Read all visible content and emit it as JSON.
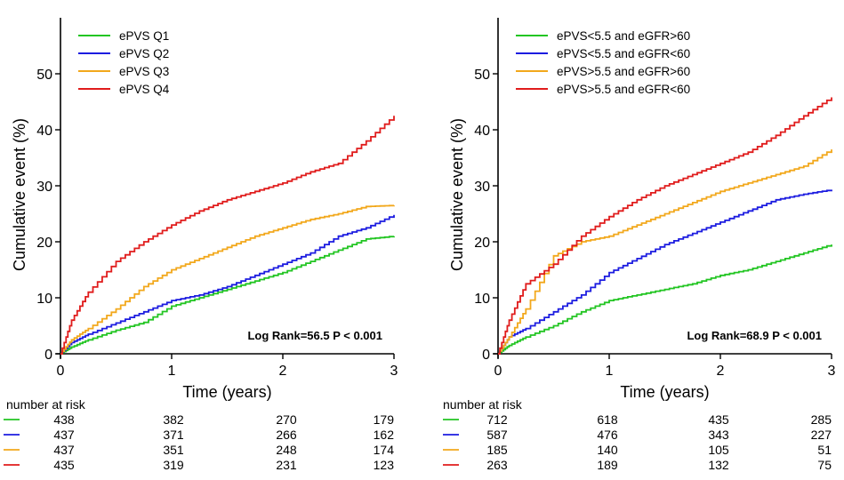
{
  "chart_data": [
    {
      "type": "line",
      "xlabel": "Time (years)",
      "ylabel": "Cumulative event (%)",
      "xlim": [
        0,
        3
      ],
      "ylim": [
        0,
        60
      ],
      "xticks": [
        0,
        1,
        2,
        3
      ],
      "yticks": [
        0,
        10,
        20,
        30,
        40,
        50
      ],
      "grid": false,
      "legend_position": "top-left",
      "annotation": "Log Rank=56.5   P < 0.001",
      "series": [
        {
          "name": "ePVS Q1",
          "color": "#22c522",
          "x": [
            0,
            0.1,
            0.25,
            0.5,
            0.75,
            1.0,
            1.25,
            1.5,
            1.75,
            2.0,
            2.25,
            2.5,
            2.75,
            3.0
          ],
          "y": [
            0,
            1.2,
            2.5,
            4.2,
            5.6,
            8.5,
            10.0,
            11.5,
            13.0,
            14.5,
            16.5,
            18.5,
            20.5,
            21.0
          ]
        },
        {
          "name": "ePVS Q2",
          "color": "#1c1ce0",
          "x": [
            0,
            0.1,
            0.25,
            0.5,
            0.75,
            1.0,
            1.25,
            1.5,
            1.75,
            2.0,
            2.25,
            2.5,
            2.75,
            3.0
          ],
          "y": [
            0,
            2.0,
            3.5,
            5.5,
            7.5,
            9.5,
            10.5,
            12.0,
            14.0,
            16.0,
            18.0,
            21.0,
            22.5,
            24.8
          ]
        },
        {
          "name": "ePVS Q3",
          "color": "#f2a81c",
          "x": [
            0,
            0.1,
            0.25,
            0.5,
            0.75,
            1.0,
            1.25,
            1.5,
            1.75,
            2.0,
            2.25,
            2.5,
            2.75,
            3.0
          ],
          "y": [
            0,
            2.5,
            4.5,
            8.0,
            12.0,
            15.0,
            17.0,
            19.0,
            21.0,
            22.5,
            24.0,
            25.0,
            26.3,
            26.5
          ]
        },
        {
          "name": "ePVS Q4",
          "color": "#e01c1c",
          "x": [
            0,
            0.1,
            0.25,
            0.5,
            0.75,
            1.0,
            1.25,
            1.5,
            1.75,
            2.0,
            2.25,
            2.5,
            2.75,
            3.0
          ],
          "y": [
            0,
            6.0,
            11.0,
            16.5,
            20.0,
            23.0,
            25.5,
            27.5,
            29.0,
            30.5,
            32.5,
            34.0,
            38.0,
            42.5
          ]
        }
      ],
      "risk_table": {
        "label": "number at risk",
        "rows": [
          {
            "color": "#22c522",
            "values": [
              "438",
              "382",
              "270",
              "179"
            ]
          },
          {
            "color": "#1c1ce0",
            "values": [
              "437",
              "371",
              "266",
              "162"
            ]
          },
          {
            "color": "#f2a81c",
            "values": [
              "437",
              "351",
              "248",
              "174"
            ]
          },
          {
            "color": "#e01c1c",
            "values": [
              "435",
              "319",
              "231",
              "123"
            ]
          }
        ]
      }
    },
    {
      "type": "line",
      "xlabel": "Time (years)",
      "ylabel": "Cumulative event (%)",
      "xlim": [
        0,
        3
      ],
      "ylim": [
        0,
        60
      ],
      "xticks": [
        0,
        1,
        2,
        3
      ],
      "yticks": [
        0,
        10,
        20,
        30,
        40,
        50
      ],
      "grid": false,
      "legend_position": "top-left",
      "annotation": "Log Rank=68.9   P < 0.001",
      "series": [
        {
          "name": "ePVS<5.5 and eGFR>60",
          "color": "#22c522",
          "x": [
            0,
            0.1,
            0.25,
            0.5,
            0.75,
            1.0,
            1.25,
            1.5,
            1.75,
            2.0,
            2.25,
            2.5,
            2.75,
            3.0
          ],
          "y": [
            0,
            1.5,
            3.0,
            5.0,
            7.5,
            9.5,
            10.5,
            11.5,
            12.5,
            14.0,
            15.0,
            16.5,
            18.0,
            19.5
          ]
        },
        {
          "name": "ePVS<5.5 and eGFR<60",
          "color": "#1c1ce0",
          "x": [
            0,
            0.1,
            0.25,
            0.5,
            0.75,
            1.0,
            1.25,
            1.5,
            1.75,
            2.0,
            2.25,
            2.5,
            2.75,
            3.0
          ],
          "y": [
            0,
            3.0,
            4.5,
            7.5,
            10.5,
            14.5,
            17.0,
            19.5,
            21.5,
            23.5,
            25.5,
            27.5,
            28.5,
            29.3
          ]
        },
        {
          "name": "ePVS>5.5 and eGFR>60",
          "color": "#f2a81c",
          "x": [
            0,
            0.1,
            0.25,
            0.5,
            0.75,
            1.0,
            1.25,
            1.5,
            1.75,
            2.0,
            2.25,
            2.5,
            2.75,
            3.0
          ],
          "y": [
            0,
            3.0,
            8.0,
            17.5,
            20.0,
            21.0,
            23.0,
            25.0,
            27.0,
            29.0,
            30.5,
            32.0,
            33.5,
            36.5
          ]
        },
        {
          "name": "ePVS>5.5 and eGFR<60",
          "color": "#e01c1c",
          "x": [
            0,
            0.1,
            0.25,
            0.5,
            0.75,
            1.0,
            1.25,
            1.5,
            1.75,
            2.0,
            2.25,
            2.5,
            2.75,
            3.0
          ],
          "y": [
            0,
            6.0,
            12.5,
            16.0,
            21.0,
            24.5,
            27.5,
            30.0,
            32.0,
            34.0,
            36.0,
            39.0,
            42.5,
            45.8
          ]
        }
      ],
      "risk_table": {
        "label": "number at risk",
        "rows": [
          {
            "color": "#22c522",
            "values": [
              "712",
              "618",
              "435",
              "285"
            ]
          },
          {
            "color": "#1c1ce0",
            "values": [
              "587",
              "476",
              "343",
              "227"
            ]
          },
          {
            "color": "#f2a81c",
            "values": [
              "185",
              "140",
              "105",
              "51"
            ]
          },
          {
            "color": "#e01c1c",
            "values": [
              "263",
              "189",
              "132",
              "75"
            ]
          }
        ]
      }
    }
  ]
}
